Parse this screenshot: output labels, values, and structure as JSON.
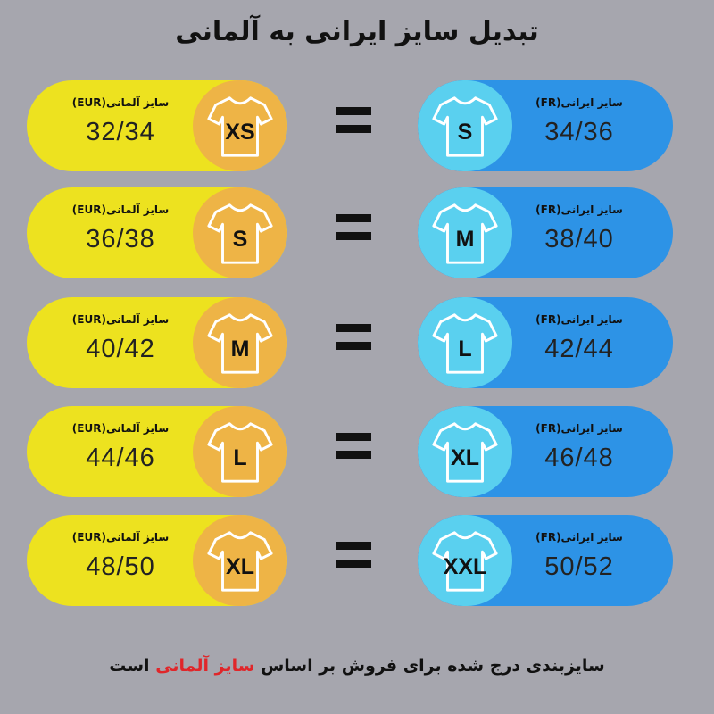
{
  "title": "تبدیل سایز ایرانی به آلمانی",
  "colors": {
    "background": "#a6a6ae",
    "eur_pill": "#ede21f",
    "eur_circle": "#eeb446",
    "fr_pill": "#2d93e6",
    "fr_circle": "#5ad0ef",
    "highlight": "#e0262a"
  },
  "rows": [
    {
      "eur_label": "سایز آلمانی(EUR)",
      "eur_letter": "XS",
      "eur_value": "32/34",
      "fr_label": "سایز ایرانی(FR)",
      "fr_letter": "S",
      "fr_value": "34/36",
      "equals": "="
    },
    {
      "eur_label": "سایز آلمانی(EUR)",
      "eur_letter": "S",
      "eur_value": "36/38",
      "fr_label": "سایز ایرانی(FR)",
      "fr_letter": "M",
      "fr_value": "38/40",
      "equals": "="
    },
    {
      "eur_label": "سایز آلمانی(EUR)",
      "eur_letter": "M",
      "eur_value": "40/42",
      "fr_label": "سایز ایرانی(FR)",
      "fr_letter": "L",
      "fr_value": "42/44",
      "equals": "="
    },
    {
      "eur_label": "سایز آلمانی(EUR)",
      "eur_letter": "L",
      "eur_value": "44/46",
      "fr_label": "سایز ایرانی(FR)",
      "fr_letter": "XL",
      "fr_value": "46/48",
      "equals": "="
    },
    {
      "eur_label": "سایز آلمانی(EUR)",
      "eur_letter": "XL",
      "eur_value": "48/50",
      "fr_label": "سایز ایرانی(FR)",
      "fr_letter": "XXL",
      "fr_value": "50/52",
      "equals": "="
    }
  ],
  "footer": {
    "before": "سایزبندی درج شده برای فروش بر اساس ",
    "highlight": "سایز آلمانی",
    "after": " است"
  },
  "icons": {
    "shirt": "t-shirt-icon"
  }
}
